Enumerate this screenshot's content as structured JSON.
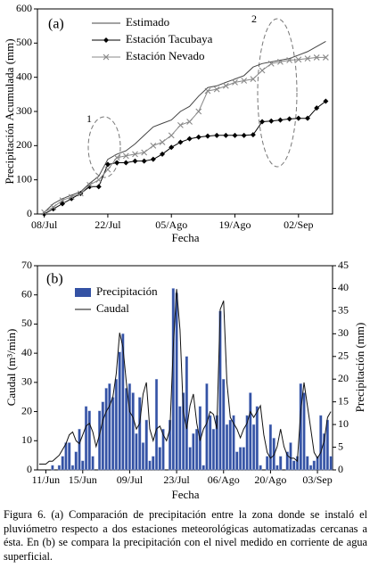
{
  "chart_data": [
    {
      "type": "line",
      "ylabel": "Precipitación Acumulada (mm)",
      "xlabel": "Fecha",
      "annotations": [
        "(a)",
        "1",
        "2"
      ],
      "x": [
        8,
        10,
        12,
        14,
        16,
        18,
        20,
        22,
        24,
        26,
        28,
        30,
        32,
        34,
        36,
        38,
        40,
        42,
        44,
        46,
        48,
        50,
        52,
        54,
        56,
        58,
        60,
        62,
        64,
        66,
        68,
        70
      ],
      "xlim": [
        6.5,
        71.5
      ],
      "xticks": [
        {
          "value": 8,
          "label": "08/Jul"
        },
        {
          "value": 22,
          "label": "22/Jul"
        },
        {
          "value": 36,
          "label": "05/Ago"
        },
        {
          "value": 50,
          "label": "19/Ago"
        },
        {
          "value": 64,
          "label": "02/Sep"
        }
      ],
      "ylim": [
        0,
        600
      ],
      "yticks": [
        0,
        100,
        200,
        300,
        400,
        500,
        600
      ],
      "grid": false,
      "legend": "upper-left",
      "series": [
        {
          "name": "Estimado",
          "color": "#444444",
          "marker": "none",
          "values": [
            5,
            30,
            45,
            55,
            65,
            90,
            110,
            160,
            175,
            185,
            205,
            230,
            255,
            265,
            275,
            300,
            315,
            345,
            370,
            375,
            385,
            395,
            405,
            430,
            440,
            445,
            450,
            455,
            465,
            475,
            490,
            505
          ]
        },
        {
          "name": "Estación Tacubaya",
          "color": "#000000",
          "marker": "diamond",
          "values": [
            0,
            15,
            30,
            45,
            60,
            80,
            80,
            145,
            150,
            150,
            155,
            155,
            160,
            175,
            195,
            210,
            220,
            225,
            228,
            230,
            230,
            230,
            230,
            232,
            270,
            272,
            275,
            278,
            280,
            280,
            310,
            330
          ]
        },
        {
          "name": "Estación Nevado",
          "color": "#888888",
          "marker": "x",
          "values": [
            5,
            20,
            40,
            50,
            60,
            85,
            100,
            130,
            165,
            170,
            175,
            180,
            200,
            210,
            230,
            260,
            270,
            300,
            360,
            365,
            375,
            385,
            390,
            395,
            420,
            440,
            445,
            450,
            452,
            455,
            458,
            458
          ]
        }
      ]
    },
    {
      "type": "combo",
      "ylabel": "Caudal (m³/min)",
      "y2label": "Precipitación (mm)",
      "xlabel": "Fecha",
      "annotations": [
        "(b)"
      ],
      "categories": [
        null,
        null,
        "11/Jun",
        null,
        null,
        null,
        null,
        null,
        null,
        null,
        null,
        null,
        null,
        "15/Jun",
        null,
        null,
        null,
        null,
        null,
        null,
        null,
        null,
        null,
        null,
        null,
        null,
        null,
        "09/Jul",
        null,
        null,
        null,
        null,
        null,
        null,
        null,
        null,
        null,
        null,
        null,
        null,
        null,
        "23/Jul",
        null,
        null,
        null,
        null,
        null,
        null,
        null,
        null,
        null,
        null,
        null,
        null,
        null,
        "06/Ago",
        null,
        null,
        null,
        null,
        null,
        null,
        null,
        null,
        null,
        null,
        null,
        null,
        null,
        "20/Ago",
        null,
        null,
        null,
        null,
        null,
        null,
        null,
        null,
        null,
        null,
        null,
        null,
        null,
        "03/Sep",
        null,
        null,
        null,
        null
      ],
      "ylim": [
        0,
        70
      ],
      "yticks": [
        0,
        10,
        20,
        30,
        40,
        50,
        60,
        70
      ],
      "y2lim": [
        0,
        45
      ],
      "y2ticks": [
        0,
        5,
        10,
        15,
        20,
        25,
        30,
        35,
        40,
        45
      ],
      "grid": false,
      "legend": "upper-left",
      "series": [
        {
          "name": "Precipitación",
          "type": "bar",
          "axis": "y2",
          "color": "#3452a4",
          "values": [
            0,
            0,
            0,
            0,
            1,
            0,
            1,
            3,
            6,
            6,
            1,
            4,
            9,
            2,
            14,
            13,
            3,
            0,
            13,
            15,
            18,
            19,
            16,
            20,
            26,
            30,
            18,
            19,
            17,
            8,
            16,
            6,
            11,
            2,
            3,
            20,
            5,
            9,
            0,
            11,
            40,
            39,
            14,
            17,
            25,
            5,
            8,
            9,
            14,
            1,
            19,
            12,
            9,
            12,
            35,
            20,
            10,
            11,
            12,
            4,
            5,
            5,
            12,
            17,
            10,
            14,
            1,
            0,
            3,
            10,
            7,
            1,
            3,
            0,
            4,
            6,
            2,
            3,
            19,
            17,
            3,
            1,
            2,
            3,
            12,
            8,
            11,
            3
          ]
        },
        {
          "name": "Caudal",
          "type": "line",
          "axis": "y",
          "color": "#111111",
          "values": [
            2,
            2,
            2,
            3,
            3,
            4,
            5,
            7,
            9,
            12,
            13,
            10,
            9,
            12,
            15,
            16,
            13,
            8,
            12,
            17,
            20,
            22,
            25,
            33,
            47,
            42,
            30,
            20,
            18,
            14,
            16,
            26,
            30,
            14,
            10,
            14,
            15,
            12,
            10,
            14,
            42,
            62,
            48,
            20,
            14,
            22,
            26,
            16,
            10,
            14,
            16,
            20,
            19,
            14,
            55,
            58,
            30,
            18,
            16,
            14,
            11,
            14,
            16,
            20,
            18,
            20,
            22,
            12,
            6,
            4,
            5,
            8,
            14,
            8,
            5,
            4,
            4,
            3,
            20,
            30,
            22,
            14,
            6,
            4,
            6,
            10,
            18,
            20
          ]
        }
      ]
    }
  ],
  "caption": "Figura 6. (a) Comparación de precipitación entre la zona donde se instaló el pluviómetro respecto a dos estaciones meteorológicas automatizadas cercanas a ésta. En (b) se compara la precipitación con el nivel medido en corriente de agua superficial."
}
